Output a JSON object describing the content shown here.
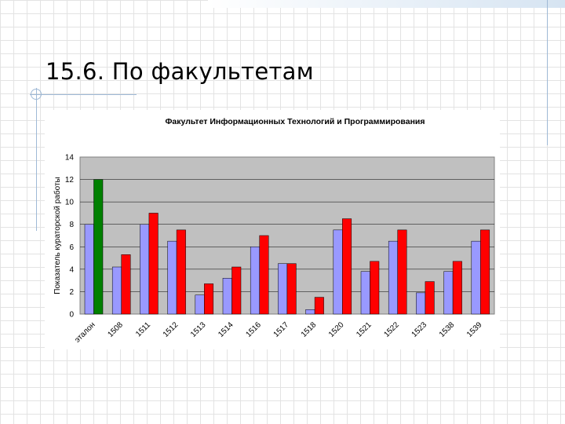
{
  "slide": {
    "title": "15.6. По факультетам"
  },
  "colors": {
    "plot_background": "#c0c0c0",
    "series_periwinkle": "#9999ff",
    "series_red": "#ff0000",
    "etalon_green": "#008000",
    "decoration": "#9fb9d6"
  },
  "chart_data": {
    "type": "bar",
    "title": "Факультет Информационных Технологий и Программирования",
    "xlabel": "",
    "ylabel": "Показатель кураторской работы",
    "ylim": [
      0,
      14
    ],
    "yticks": [
      0,
      2,
      4,
      6,
      8,
      10,
      12,
      14
    ],
    "grid": true,
    "legend": "none",
    "categories": [
      "эталон",
      "1508",
      "1511",
      "1512",
      "1513",
      "1514",
      "1516",
      "1517",
      "1518",
      "1520",
      "1521",
      "1522",
      "1523",
      "1538",
      "1539"
    ],
    "series": [
      {
        "values": [
          8,
          4.2,
          8,
          6.5,
          1.7,
          3.2,
          6,
          4.5,
          0.4,
          7.5,
          3.8,
          6.5,
          1.9,
          3.8,
          6.5
        ],
        "color": "#9999ff"
      },
      {
        "values": [
          12,
          5.3,
          9,
          7.5,
          2.7,
          4.2,
          7,
          4.5,
          1.5,
          8.5,
          4.7,
          7.5,
          2.9,
          4.7,
          7.5
        ],
        "color": "#ff0000",
        "first_bar_color": "#008000"
      }
    ]
  }
}
